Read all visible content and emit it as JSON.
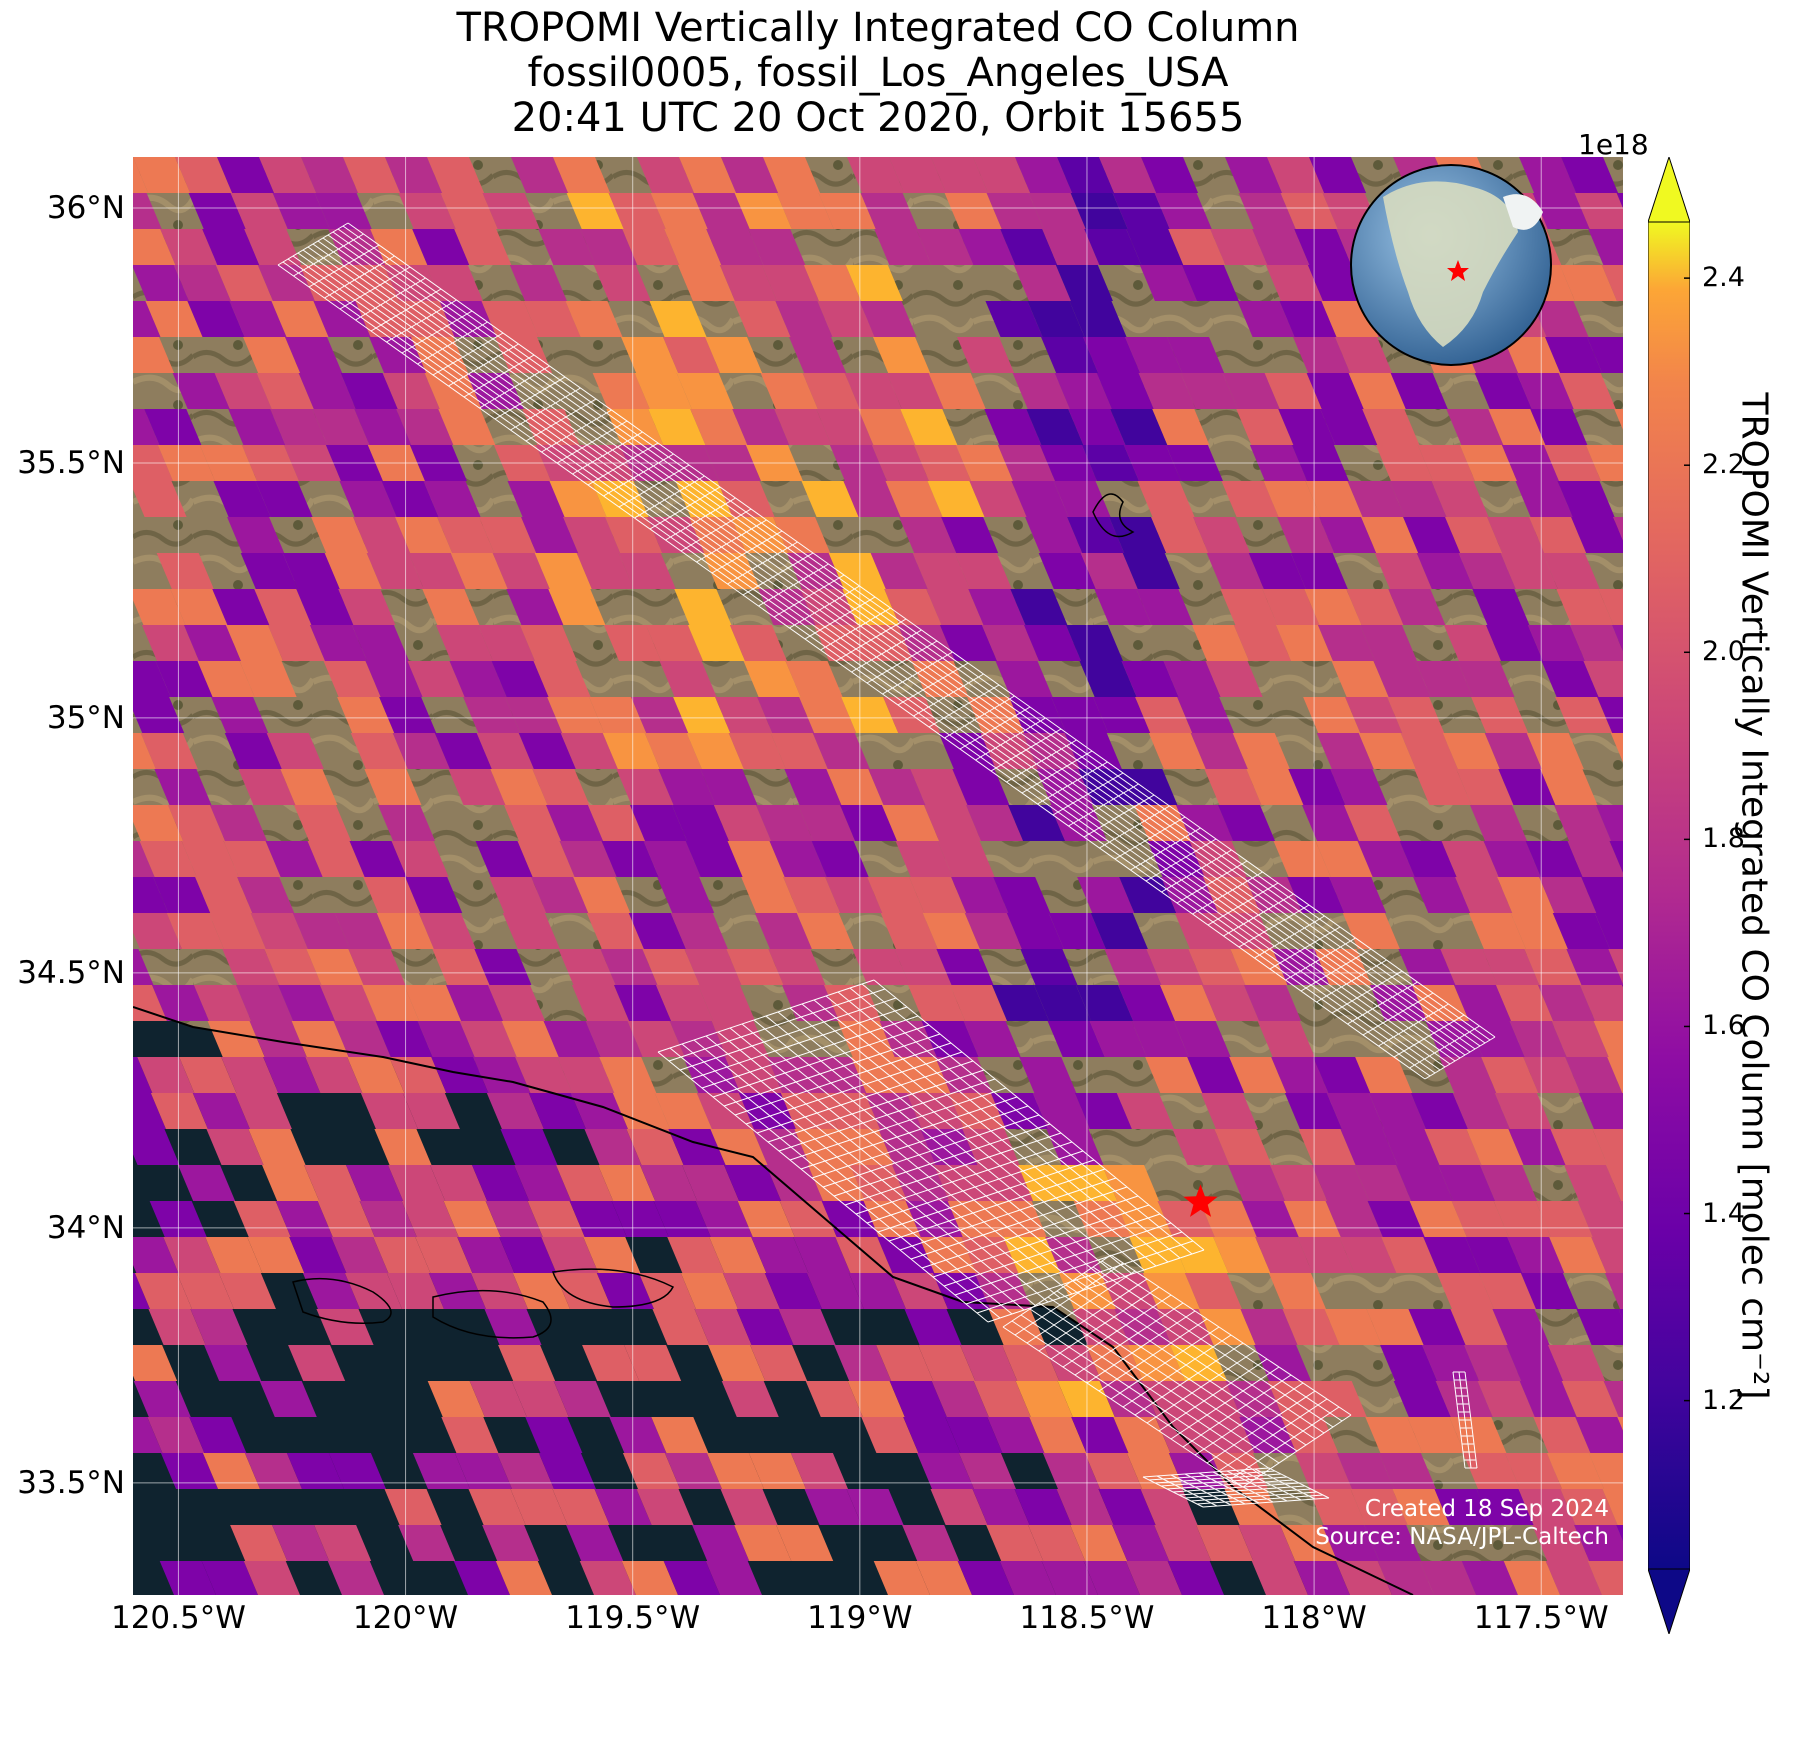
{
  "title": {
    "line1": "TROPOMI Vertically Integrated CO Column",
    "line2": "fossil0005, fossil_Los_Angeles_USA",
    "line3": "20:41 UTC 20 Oct 2020, Orbit 15655"
  },
  "axes": {
    "lat_ticks": [
      "36°N",
      "35.5°N",
      "35°N",
      "34.5°N",
      "34°N",
      "33.5°N"
    ],
    "lon_ticks": [
      "120.5°W",
      "120°W",
      "119.5°W",
      "119°W",
      "118.5°W",
      "118°W",
      "117.5°W"
    ],
    "lat_range": [
      33.28,
      36.1
    ],
    "lon_range": [
      -120.6,
      -117.32
    ],
    "grid": true
  },
  "colorbar": {
    "exponent": "1e18",
    "ticks": [
      "1.2",
      "1.4",
      "1.6",
      "1.8",
      "2.0",
      "2.2",
      "2.4"
    ],
    "range": [
      1.02,
      2.46
    ],
    "extend": "both",
    "colormap": "plasma",
    "label": "TROPOMI Vertically Integrated CO Column [molec cm⁻²]"
  },
  "credit": {
    "created": "Created 18 Sep 2024",
    "source": "Source: NASA/JPL-Caltech"
  },
  "target": {
    "name": "fossil_Los_Angeles_USA",
    "lat": 34.05,
    "lon": -118.25,
    "marker_color": "#ff0000"
  },
  "colors": {
    "ocean": "#0f232f",
    "land": "#8b7a5b",
    "grid": "#ffffff",
    "coast": "#000000",
    "target_grid": "#ffffff"
  },
  "icons": [
    "star-marker-icon",
    "globe-inset-icon"
  ]
}
